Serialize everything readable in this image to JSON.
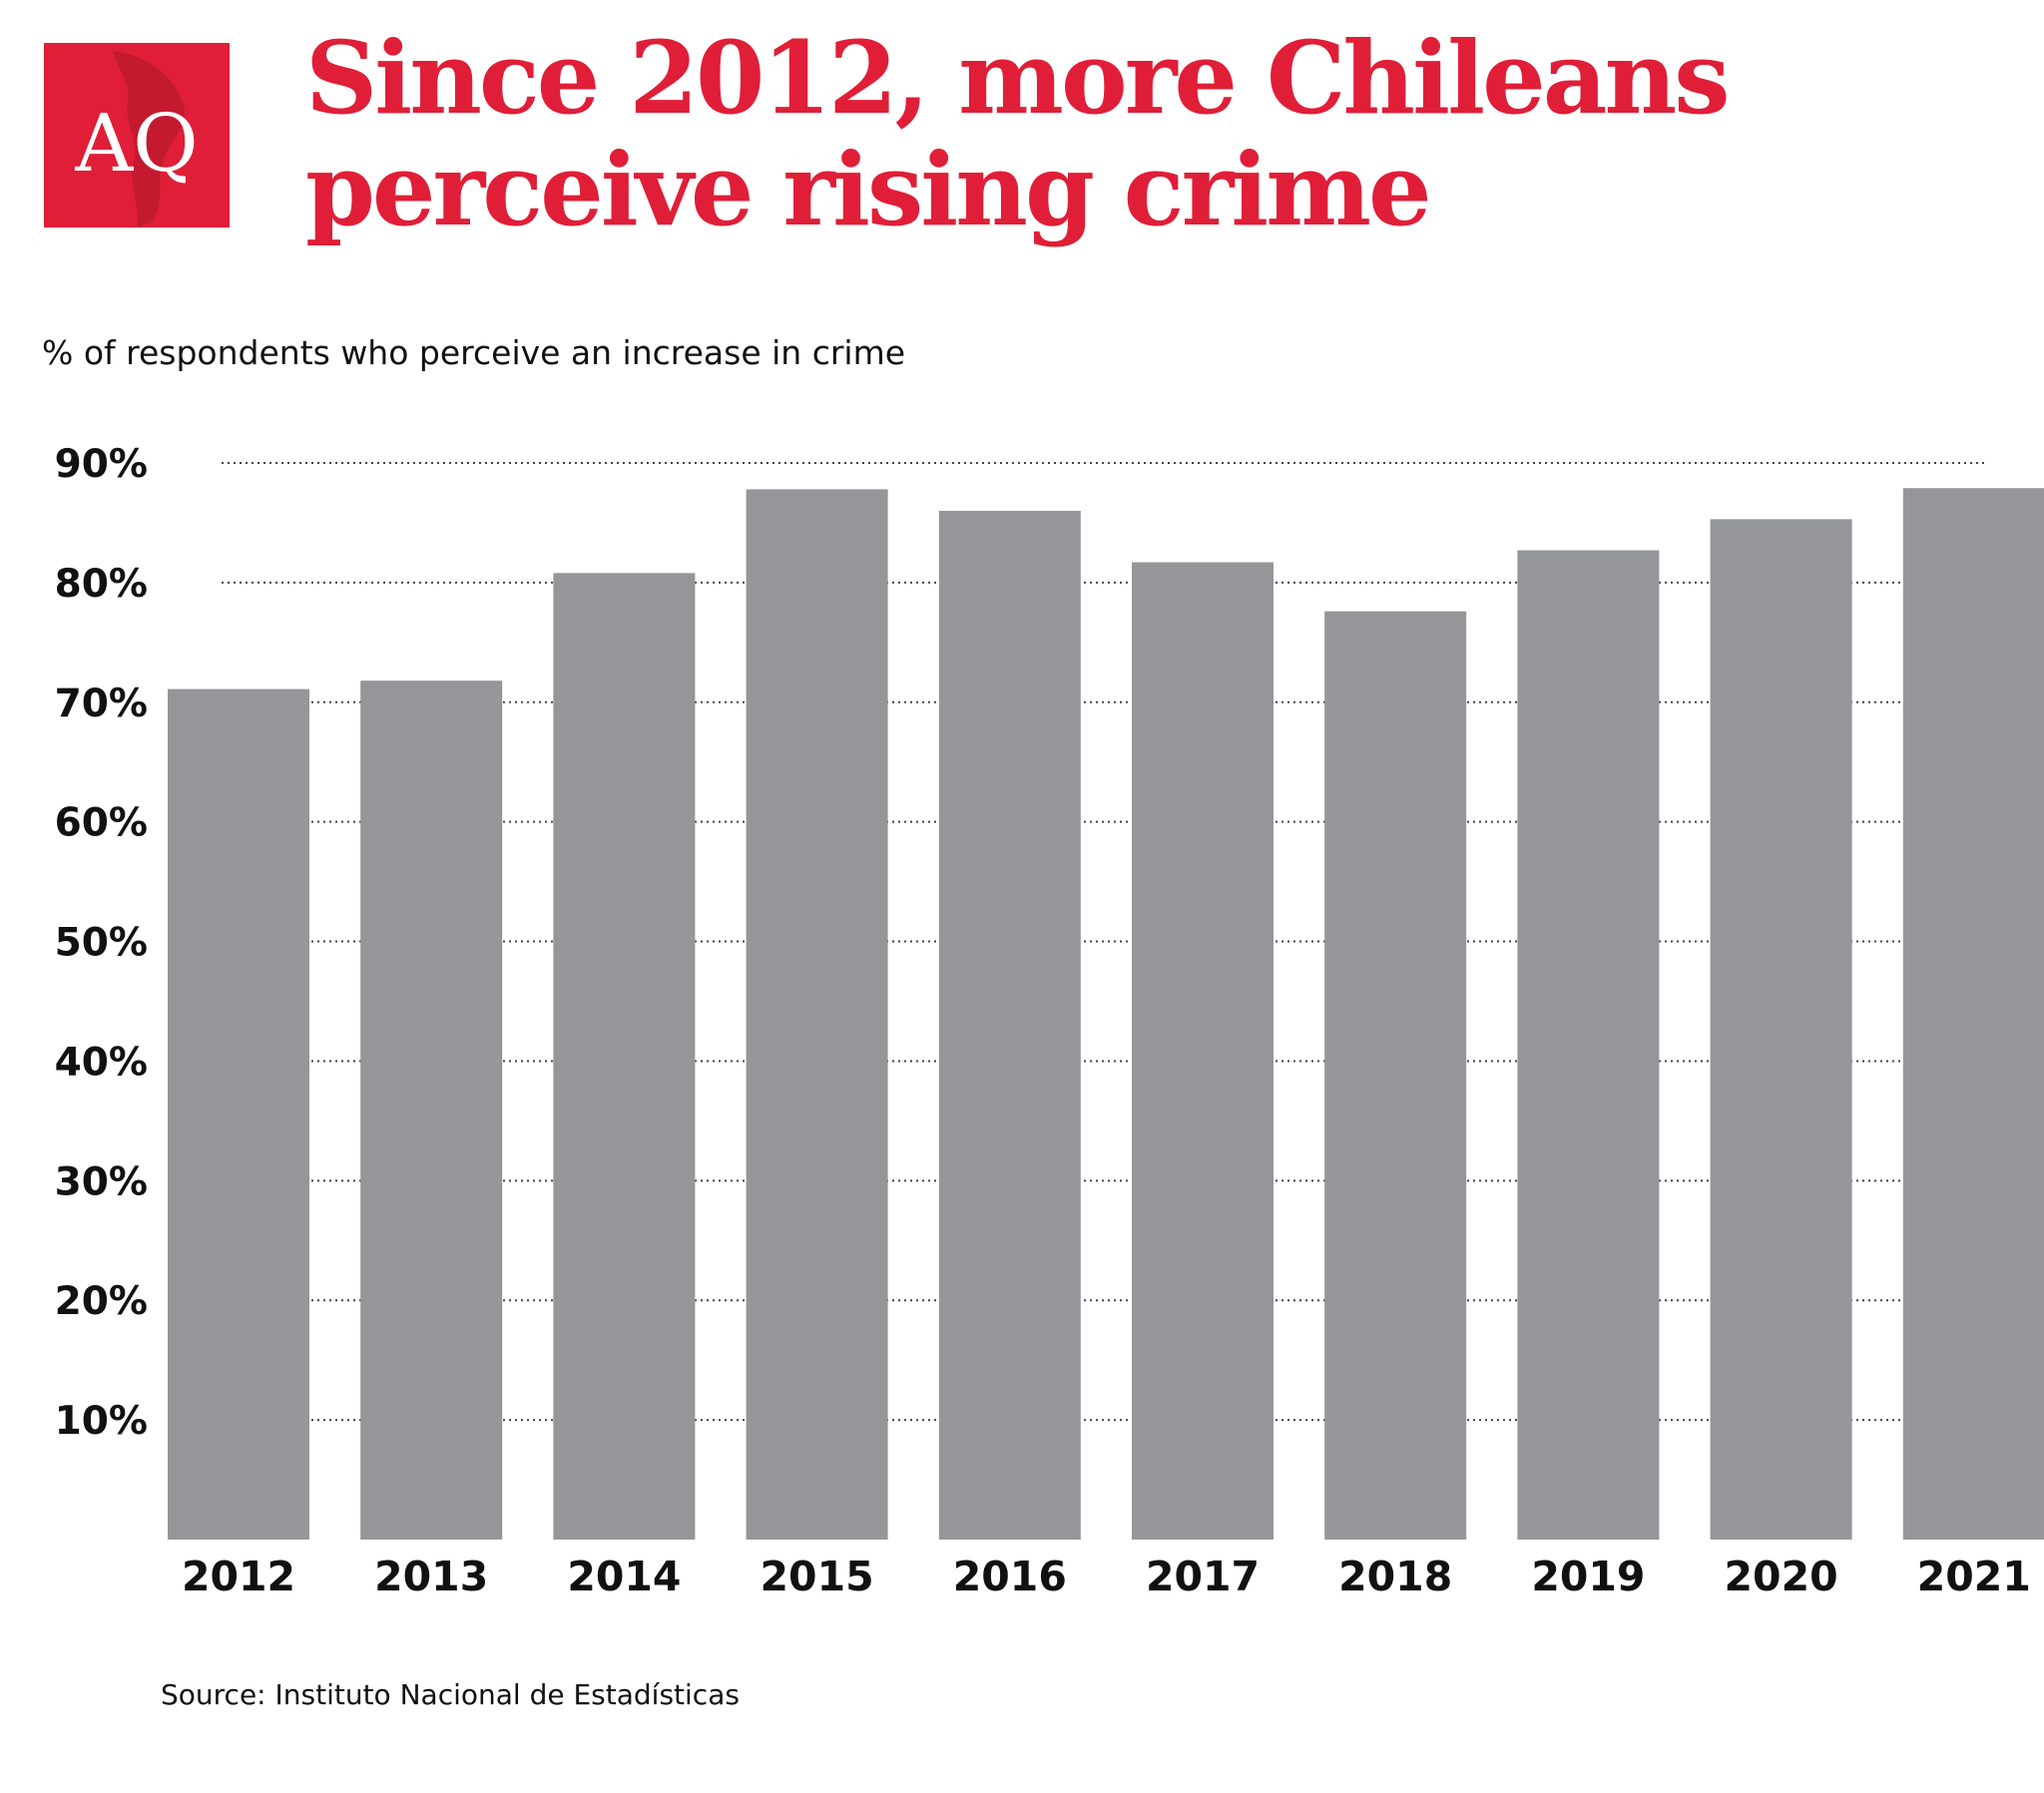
{
  "brand": {
    "logo_text": "AQ",
    "red": "#e01e37"
  },
  "header": {
    "title_line1": "Since 2012, more Chileans",
    "title_line2": "perceive rising crime"
  },
  "footer": {
    "source": "Source: Instituto Nacional de Estadísticas"
  },
  "chart_data": {
    "type": "bar",
    "title": "",
    "subtitle": "% of respondents who perceive an increase in crime",
    "xlabel": "",
    "ylabel": "",
    "categories": [
      "2012",
      "2013",
      "2014",
      "2015",
      "2016",
      "2017",
      "2018",
      "2019",
      "2020",
      "2021"
    ],
    "values": [
      71.1,
      71.8,
      80.8,
      87.8,
      86.0,
      81.7,
      77.6,
      82.7,
      85.3,
      87.9
    ],
    "ylim": [
      0,
      90
    ],
    "yticks": [
      10,
      20,
      30,
      40,
      50,
      60,
      70,
      80,
      90
    ],
    "ytick_labels": [
      "10%",
      "20%",
      "30%",
      "40%",
      "50%",
      "60%",
      "70%",
      "80%",
      "90%"
    ],
    "grid": "horizontal-dotted",
    "legend": "none",
    "bar_color": "#959699",
    "text_color": "#111111"
  }
}
